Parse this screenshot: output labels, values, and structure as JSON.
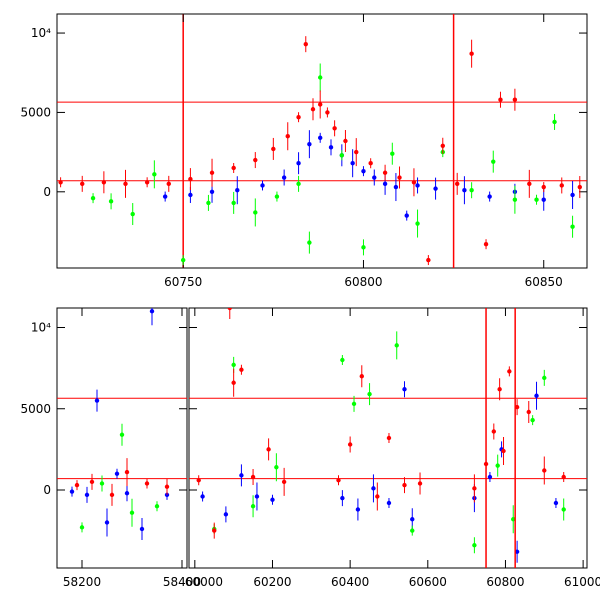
{
  "chart_data": [
    {
      "type": "scatter",
      "title": "",
      "xlabel": "",
      "ylabel": "",
      "xlim": [
        60715,
        60862
      ],
      "ylim": [
        -4800,
        11200
      ],
      "x_ticks": [
        60750,
        60800,
        60850
      ],
      "x_tick_labels": [
        "60750",
        "60800",
        "60850"
      ],
      "y_ticks": [
        0,
        5000,
        10000
      ],
      "y_tick_labels": [
        "0",
        "5000",
        "10⁴"
      ],
      "hlines": [
        5650,
        700
      ],
      "vlines": [
        60750,
        60825
      ],
      "line_color": "#ff0000",
      "series": [
        {
          "color": "#0000ff",
          "x": [
            60745,
            60752,
            60758,
            60765,
            60772,
            60778,
            60782,
            60785,
            60788,
            60791,
            60794,
            60797,
            60800,
            60803,
            60806,
            60809,
            60812,
            60815,
            60820,
            60828,
            60835,
            60842,
            60850,
            60858
          ],
          "y": [
            -300,
            -200,
            0,
            100,
            400,
            900,
            1800,
            3000,
            3400,
            2800,
            2300,
            1800,
            1300,
            900,
            500,
            300,
            -1500,
            400,
            200,
            100,
            -300,
            0,
            -500,
            -200
          ]
        },
        {
          "color": "#00ff00",
          "x": [
            60725,
            60730,
            60736,
            60742,
            60750,
            60757,
            60764,
            60770,
            60776,
            60782,
            60785,
            60788,
            60794,
            60800,
            60808,
            60815,
            60822,
            60830,
            60836,
            60842,
            60848,
            60853,
            60858
          ],
          "y": [
            -400,
            -600,
            -1400,
            1100,
            -4300,
            -700,
            -700,
            -1300,
            -300,
            500,
            -3200,
            7200,
            2300,
            -3500,
            2400,
            -2000,
            2500,
            100,
            1900,
            -500,
            -500,
            4400,
            -2200
          ]
        },
        {
          "color": "#ff0000",
          "x": [
            60716,
            60722,
            60728,
            60734,
            60740,
            60746,
            60752,
            60758,
            60764,
            60770,
            60775,
            60779,
            60782,
            60784,
            60786,
            60788,
            60790,
            60792,
            60795,
            60798,
            60802,
            60806,
            60810,
            60814,
            60818,
            60822,
            60826,
            60830,
            60834,
            60838,
            60842,
            60846,
            60850,
            60855,
            60860
          ],
          "y": [
            600,
            500,
            600,
            500,
            600,
            500,
            800,
            1200,
            1500,
            2000,
            2700,
            3500,
            4700,
            9300,
            5200,
            5500,
            5000,
            4000,
            3200,
            2500,
            1800,
            1200,
            900,
            600,
            -4300,
            2900,
            500,
            8700,
            -3300,
            5800,
            5800,
            500,
            300,
            400,
            300
          ]
        }
      ]
    },
    {
      "type": "scatter",
      "title": "",
      "xlabel": "",
      "ylabel": "",
      "broken_axis": true,
      "segments": [
        {
          "xlim": [
            58150,
            58410
          ],
          "x_ticks": [
            58200,
            58400
          ],
          "x_tick_labels": [
            "58200",
            "58400"
          ]
        },
        {
          "xlim": [
            59985,
            61010
          ],
          "x_ticks": [
            60000,
            60200,
            60400,
            60600,
            60800,
            61000
          ],
          "x_tick_labels": [
            "60000",
            "60200",
            "60400",
            "60600",
            "60800",
            "61000"
          ]
        }
      ],
      "ylim": [
        -4800,
        11200
      ],
      "y_ticks": [
        0,
        5000,
        10000
      ],
      "y_tick_labels": [
        "0",
        "5000",
        "10⁴"
      ],
      "hlines": [
        5650,
        700
      ],
      "vlines": [
        60750,
        60825
      ],
      "line_color": "#ff0000",
      "series": [
        {
          "color": "#0000ff",
          "x": [
            58180,
            58210,
            58230,
            58250,
            58270,
            58290,
            58320,
            58340,
            58370,
            60020,
            60080,
            60120,
            60160,
            60200,
            60380,
            60420,
            60460,
            60500,
            60540,
            60560,
            60720,
            60760,
            60790,
            60830,
            60880,
            60930
          ],
          "y": [
            -100,
            -300,
            5500,
            -2000,
            1000,
            -200,
            -2400,
            11000,
            -300,
            -400,
            -1500,
            900,
            -400,
            -600,
            -500,
            -1200,
            100,
            -800,
            6200,
            -1800,
            -500,
            800,
            2500,
            -3800,
            5800,
            -800
          ]
        },
        {
          "color": "#00ff00",
          "x": [
            58200,
            58240,
            58280,
            58300,
            58350,
            60050,
            60100,
            60150,
            60210,
            60380,
            60410,
            60450,
            60520,
            60560,
            60720,
            60780,
            60820,
            60870,
            60900,
            60950
          ],
          "y": [
            -2300,
            400,
            3400,
            -1400,
            -1000,
            -2400,
            7700,
            -1000,
            1400,
            8000,
            5300,
            5900,
            8900,
            -2500,
            -3400,
            1500,
            -1800,
            4300,
            6900,
            -1200
          ]
        },
        {
          "color": "#ff0000",
          "x": [
            58190,
            58220,
            58260,
            58290,
            58330,
            58370,
            60010,
            60050,
            60090,
            60100,
            60120,
            60150,
            60190,
            60230,
            60370,
            60400,
            60430,
            60470,
            60500,
            60540,
            60580,
            60720,
            60750,
            60770,
            60785,
            60795,
            60810,
            60830,
            60860,
            60900,
            60950
          ],
          "y": [
            300,
            500,
            -300,
            1100,
            400,
            200,
            600,
            -2500,
            11200,
            6600,
            7400,
            800,
            2500,
            500,
            600,
            2800,
            7000,
            -400,
            3200,
            300,
            400,
            100,
            1600,
            3600,
            6200,
            2400,
            7300,
            5100,
            4800,
            1200,
            800
          ]
        }
      ]
    }
  ]
}
